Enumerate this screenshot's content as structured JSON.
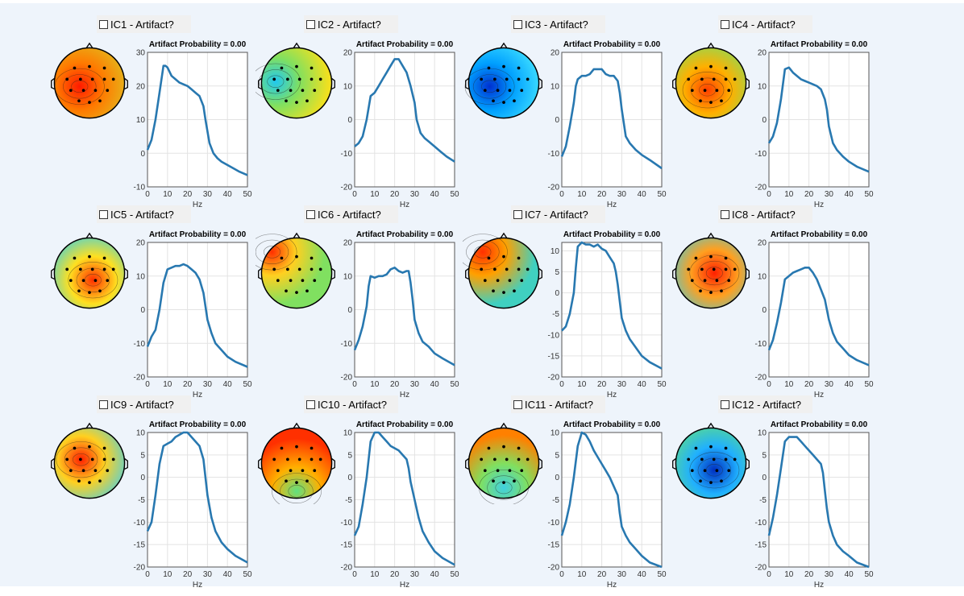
{
  "panels": [
    {
      "label": "IC1 - Artifact?",
      "prob_title": "Artifact Probability = 0.00",
      "ylim": [
        -10,
        30
      ],
      "yticks": [
        -10,
        0,
        10,
        20,
        30
      ],
      "spectrum": [
        [
          0,
          1
        ],
        [
          2,
          4
        ],
        [
          4,
          10
        ],
        [
          6,
          18
        ],
        [
          8,
          26
        ],
        [
          9,
          26
        ],
        [
          10,
          25.5
        ],
        [
          12,
          23
        ],
        [
          14,
          22
        ],
        [
          16,
          21
        ],
        [
          18,
          20.5
        ],
        [
          20,
          20
        ],
        [
          22,
          19
        ],
        [
          24,
          18
        ],
        [
          26,
          17
        ],
        [
          28,
          14
        ],
        [
          29,
          10
        ],
        [
          31,
          3
        ],
        [
          33,
          0
        ],
        [
          35,
          -1.5
        ],
        [
          37,
          -2.5
        ],
        [
          40,
          -3.5
        ],
        [
          43,
          -4.5
        ],
        [
          46,
          -5.5
        ],
        [
          50,
          -6.5
        ]
      ],
      "topo_colors": [
        "#ff1a00",
        "#ff7a00",
        "#e0c020"
      ],
      "topo_hot": [
        0.36,
        0.55
      ],
      "checked": false
    },
    {
      "label": "IC2 - Artifact?",
      "prob_title": "Artifact Probability = 0.00",
      "ylim": [
        -20,
        20
      ],
      "yticks": [
        -20,
        -10,
        0,
        10,
        20
      ],
      "spectrum": [
        [
          0,
          -8
        ],
        [
          2,
          -7
        ],
        [
          4,
          -5
        ],
        [
          6,
          0
        ],
        [
          8,
          7
        ],
        [
          10,
          8
        ],
        [
          12,
          10
        ],
        [
          14,
          12
        ],
        [
          16,
          14
        ],
        [
          18,
          16
        ],
        [
          20,
          18
        ],
        [
          22,
          18
        ],
        [
          24,
          16
        ],
        [
          26,
          14
        ],
        [
          28,
          10
        ],
        [
          30,
          5
        ],
        [
          31,
          0
        ],
        [
          33,
          -4
        ],
        [
          35,
          -5.5
        ],
        [
          37,
          -6.5
        ],
        [
          40,
          -8
        ],
        [
          43,
          -9.5
        ],
        [
          46,
          -11
        ],
        [
          50,
          -12.5
        ]
      ],
      "topo_colors": [
        "#20c8f0",
        "#80e060",
        "#f0e020"
      ],
      "topo_hot": [
        0.2,
        0.48
      ],
      "checked": false
    },
    {
      "label": "IC3 - Artifact?",
      "prob_title": "Artifact Probability = 0.00",
      "ylim": [
        -20,
        20
      ],
      "yticks": [
        -20,
        -10,
        0,
        10,
        20
      ],
      "spectrum": [
        [
          0,
          -11
        ],
        [
          2,
          -8
        ],
        [
          4,
          -2
        ],
        [
          6,
          5
        ],
        [
          7,
          10
        ],
        [
          8,
          12
        ],
        [
          10,
          13
        ],
        [
          12,
          13
        ],
        [
          14,
          13.5
        ],
        [
          16,
          15
        ],
        [
          18,
          15
        ],
        [
          20,
          15
        ],
        [
          22,
          13.5
        ],
        [
          24,
          13
        ],
        [
          26,
          13
        ],
        [
          28,
          11.5
        ],
        [
          29,
          8
        ],
        [
          30,
          3
        ],
        [
          31,
          -1
        ],
        [
          32,
          -5
        ],
        [
          34,
          -7
        ],
        [
          37,
          -9
        ],
        [
          40,
          -10.5
        ],
        [
          44,
          -12
        ],
        [
          50,
          -14.5
        ]
      ],
      "topo_colors": [
        "#0030d0",
        "#00a0ff",
        "#40e0ff"
      ],
      "topo_hot": [
        0.3,
        0.55
      ],
      "checked": false
    },
    {
      "label": "IC4 - Artifact?",
      "prob_title": "Artifact Probability = 0.00",
      "ylim": [
        -20,
        20
      ],
      "yticks": [
        -20,
        -10,
        0,
        10,
        20
      ],
      "spectrum": [
        [
          0,
          -7
        ],
        [
          2,
          -5
        ],
        [
          4,
          -1
        ],
        [
          6,
          6
        ],
        [
          8,
          15
        ],
        [
          10,
          15.5
        ],
        [
          12,
          14
        ],
        [
          14,
          13
        ],
        [
          16,
          12
        ],
        [
          18,
          11.5
        ],
        [
          20,
          11
        ],
        [
          22,
          10.5
        ],
        [
          24,
          10
        ],
        [
          26,
          9
        ],
        [
          28,
          6
        ],
        [
          29,
          3
        ],
        [
          30,
          -2
        ],
        [
          32,
          -7
        ],
        [
          34,
          -9
        ],
        [
          37,
          -11
        ],
        [
          40,
          -12.5
        ],
        [
          44,
          -14
        ],
        [
          50,
          -15.5
        ]
      ],
      "topo_colors": [
        "#ff4000",
        "#ffb000",
        "#80e060"
      ],
      "topo_hot": [
        0.45,
        0.6
      ],
      "checked": false
    },
    {
      "label": "IC5 - Artifact?",
      "prob_title": "Artifact Probability = 0.00",
      "ylim": [
        -20,
        20
      ],
      "yticks": [
        -20,
        -10,
        0,
        10,
        20
      ],
      "spectrum": [
        [
          0,
          -11
        ],
        [
          2,
          -8
        ],
        [
          4,
          -6
        ],
        [
          6,
          0
        ],
        [
          8,
          8
        ],
        [
          10,
          12
        ],
        [
          12,
          12.5
        ],
        [
          14,
          13
        ],
        [
          16,
          13
        ],
        [
          18,
          13.5
        ],
        [
          20,
          13
        ],
        [
          22,
          12
        ],
        [
          24,
          11
        ],
        [
          26,
          9
        ],
        [
          28,
          5
        ],
        [
          29,
          1
        ],
        [
          30,
          -3
        ],
        [
          32,
          -7
        ],
        [
          34,
          -10
        ],
        [
          37,
          -12
        ],
        [
          40,
          -14
        ],
        [
          44,
          -15.5
        ],
        [
          50,
          -17
        ]
      ],
      "topo_colors": [
        "#ff3000",
        "#ffe020",
        "#30d0f0"
      ],
      "topo_hot": [
        0.55,
        0.6
      ],
      "checked": false
    },
    {
      "label": "IC6 - Artifact?",
      "prob_title": "Artifact Probability = 0.00",
      "ylim": [
        -20,
        20
      ],
      "yticks": [
        -20,
        -10,
        0,
        10,
        20
      ],
      "spectrum": [
        [
          0,
          -12
        ],
        [
          2,
          -9
        ],
        [
          4,
          -5
        ],
        [
          6,
          1
        ],
        [
          7,
          7
        ],
        [
          8,
          10
        ],
        [
          10,
          9.5
        ],
        [
          12,
          10
        ],
        [
          14,
          10
        ],
        [
          16,
          10.5
        ],
        [
          18,
          12
        ],
        [
          20,
          12.5
        ],
        [
          22,
          11.5
        ],
        [
          24,
          11
        ],
        [
          26,
          11.5
        ],
        [
          27,
          11.5
        ],
        [
          28,
          8
        ],
        [
          29,
          3
        ],
        [
          30,
          -3
        ],
        [
          32,
          -7
        ],
        [
          34,
          -9.5
        ],
        [
          37,
          -11
        ],
        [
          40,
          -13
        ],
        [
          44,
          -14.5
        ],
        [
          50,
          -16.5
        ]
      ],
      "topo_colors": [
        "#ff3000",
        "#ffd020",
        "#80e060"
      ],
      "topo_hot": [
        0.15,
        0.2
      ],
      "checked": false
    },
    {
      "label": "IC7 - Artifact?",
      "prob_title": "Artifact Probability = 0.00",
      "ylim": [
        -20,
        12
      ],
      "yticks": [
        -20,
        -15,
        -10,
        -5,
        0,
        5,
        10
      ],
      "spectrum": [
        [
          0,
          -9
        ],
        [
          2,
          -8
        ],
        [
          4,
          -5
        ],
        [
          6,
          0
        ],
        [
          7,
          6
        ],
        [
          8,
          11
        ],
        [
          10,
          12
        ],
        [
          12,
          11.5
        ],
        [
          14,
          11.5
        ],
        [
          16,
          11
        ],
        [
          18,
          11.5
        ],
        [
          20,
          10.5
        ],
        [
          22,
          10
        ],
        [
          24,
          8.5
        ],
        [
          26,
          7
        ],
        [
          27,
          5
        ],
        [
          28,
          2
        ],
        [
          29,
          -2
        ],
        [
          30,
          -6
        ],
        [
          32,
          -9
        ],
        [
          34,
          -11
        ],
        [
          37,
          -13
        ],
        [
          40,
          -15
        ],
        [
          44,
          -16.5
        ],
        [
          50,
          -18
        ]
      ],
      "topo_colors": [
        "#ff3000",
        "#ffa000",
        "#40d0c0"
      ],
      "topo_hot": [
        0.2,
        0.2
      ],
      "checked": false
    },
    {
      "label": "IC8 - Artifact?",
      "prob_title": "Artifact Probability = 0.00",
      "ylim": [
        -20,
        20
      ],
      "yticks": [
        -20,
        -10,
        0,
        10,
        20
      ],
      "spectrum": [
        [
          0,
          -12
        ],
        [
          2,
          -9
        ],
        [
          4,
          -4
        ],
        [
          6,
          2
        ],
        [
          8,
          9
        ],
        [
          10,
          10
        ],
        [
          12,
          11
        ],
        [
          14,
          11.5
        ],
        [
          16,
          12
        ],
        [
          18,
          12.5
        ],
        [
          20,
          12.5
        ],
        [
          22,
          11
        ],
        [
          24,
          9
        ],
        [
          26,
          6
        ],
        [
          28,
          3
        ],
        [
          29,
          0
        ],
        [
          30,
          -3
        ],
        [
          32,
          -7
        ],
        [
          34,
          -9.5
        ],
        [
          37,
          -11.5
        ],
        [
          40,
          -13.5
        ],
        [
          44,
          -15
        ],
        [
          50,
          -16.5
        ]
      ],
      "topo_colors": [
        "#ff2000",
        "#ffa020",
        "#30d0f0"
      ],
      "topo_hot": [
        0.55,
        0.5
      ],
      "checked": false
    },
    {
      "label": "IC9 - Artifact?",
      "prob_title": "Artifact Probability = 0.00",
      "ylim": [
        -20,
        10
      ],
      "yticks": [
        -20,
        -15,
        -10,
        -5,
        0,
        5,
        10
      ],
      "spectrum": [
        [
          0,
          -12
        ],
        [
          2,
          -10
        ],
        [
          4,
          -4
        ],
        [
          6,
          3
        ],
        [
          8,
          7
        ],
        [
          10,
          7.5
        ],
        [
          12,
          8
        ],
        [
          14,
          9
        ],
        [
          16,
          9.5
        ],
        [
          18,
          10
        ],
        [
          20,
          10
        ],
        [
          22,
          9
        ],
        [
          24,
          8
        ],
        [
          26,
          7
        ],
        [
          28,
          4
        ],
        [
          29,
          0
        ],
        [
          30,
          -4
        ],
        [
          32,
          -9
        ],
        [
          34,
          -12
        ],
        [
          37,
          -14.5
        ],
        [
          40,
          -16
        ],
        [
          44,
          -17.5
        ],
        [
          50,
          -19
        ]
      ],
      "topo_colors": [
        "#ff2000",
        "#ffd020",
        "#40d0f0"
      ],
      "topo_hot": [
        0.38,
        0.45
      ],
      "checked": false
    },
    {
      "label": "IC10 - Artifact?",
      "prob_title": "Artifact Probability = 0.00",
      "ylim": [
        -20,
        10
      ],
      "yticks": [
        -20,
        -15,
        -10,
        -5,
        0,
        5,
        10
      ],
      "spectrum": [
        [
          0,
          -13
        ],
        [
          2,
          -11
        ],
        [
          4,
          -6
        ],
        [
          6,
          0
        ],
        [
          8,
          8
        ],
        [
          10,
          10
        ],
        [
          12,
          10
        ],
        [
          14,
          9
        ],
        [
          16,
          8
        ],
        [
          18,
          7
        ],
        [
          20,
          6.5
        ],
        [
          22,
          6
        ],
        [
          24,
          5
        ],
        [
          26,
          4
        ],
        [
          27,
          2
        ],
        [
          28,
          -1
        ],
        [
          30,
          -5
        ],
        [
          32,
          -9
        ],
        [
          34,
          -12
        ],
        [
          37,
          -14.5
        ],
        [
          40,
          -16.5
        ],
        [
          44,
          -18
        ],
        [
          50,
          -19.5
        ]
      ],
      "topo_colors": [
        "#60e080",
        "#ffb000",
        "#ff3000"
      ],
      "topo_hot": [
        0.5,
        0.9
      ],
      "checked": false
    },
    {
      "label": "IC11 - Artifact?",
      "prob_title": "Artifact Probability = 0.00",
      "ylim": [
        -20,
        10
      ],
      "yticks": [
        -20,
        -15,
        -10,
        -5,
        0,
        5,
        10
      ],
      "spectrum": [
        [
          0,
          -13
        ],
        [
          2,
          -10
        ],
        [
          4,
          -6
        ],
        [
          6,
          0
        ],
        [
          8,
          7
        ],
        [
          10,
          10
        ],
        [
          12,
          9.5
        ],
        [
          14,
          8
        ],
        [
          16,
          6
        ],
        [
          18,
          4.5
        ],
        [
          20,
          3
        ],
        [
          22,
          1.5
        ],
        [
          24,
          0
        ],
        [
          26,
          -2
        ],
        [
          28,
          -4
        ],
        [
          29,
          -8
        ],
        [
          30,
          -11
        ],
        [
          32,
          -13
        ],
        [
          34,
          -14.5
        ],
        [
          37,
          -16
        ],
        [
          40,
          -17.5
        ],
        [
          44,
          -19
        ],
        [
          50,
          -20
        ]
      ],
      "topo_colors": [
        "#40d0e0",
        "#80e060",
        "#ff8000"
      ],
      "topo_hot": [
        0.5,
        0.85
      ],
      "checked": false
    },
    {
      "label": "IC12 - Artifact?",
      "prob_title": "Artifact Probability = 0.00",
      "ylim": [
        -20,
        10
      ],
      "yticks": [
        -20,
        -15,
        -10,
        -5,
        0,
        5,
        10
      ],
      "spectrum": [
        [
          0,
          -13
        ],
        [
          2,
          -9
        ],
        [
          4,
          -4
        ],
        [
          6,
          2
        ],
        [
          8,
          8
        ],
        [
          10,
          9
        ],
        [
          12,
          9
        ],
        [
          14,
          9
        ],
        [
          16,
          8
        ],
        [
          18,
          7
        ],
        [
          20,
          6
        ],
        [
          22,
          5
        ],
        [
          24,
          4
        ],
        [
          26,
          3
        ],
        [
          27,
          1
        ],
        [
          28,
          -3
        ],
        [
          29,
          -7
        ],
        [
          30,
          -10
        ],
        [
          32,
          -13
        ],
        [
          34,
          -15
        ],
        [
          37,
          -16.5
        ],
        [
          40,
          -17.5
        ],
        [
          44,
          -19
        ],
        [
          50,
          -20
        ]
      ],
      "topo_colors": [
        "#0030c0",
        "#20b0ff",
        "#60e080"
      ],
      "topo_hot": [
        0.55,
        0.6
      ],
      "checked": false
    }
  ],
  "xticks": [
    0,
    10,
    20,
    30,
    40,
    50
  ],
  "xlabel": "Hz",
  "line_color": "#2878b0"
}
